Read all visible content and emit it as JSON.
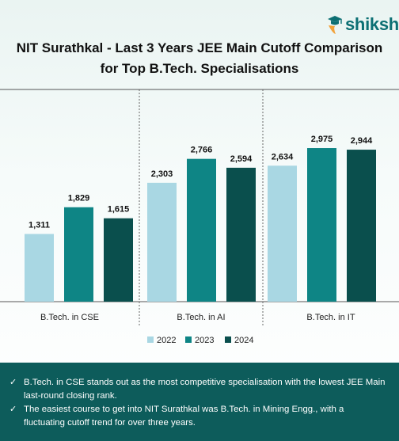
{
  "brand": {
    "logo_text": "shiksha",
    "logo_color": "#0c6f73"
  },
  "title_lines": [
    "NIT Surathkal - Last 3 Years JEE Main Cutoff Comparison",
    "for Top B.Tech. Specialisations"
  ],
  "chart_data": {
    "type": "bar",
    "title": "NIT Surathkal - Last 3 Years JEE Main Cutoff Comparison for Top B.Tech. Specialisations",
    "categories": [
      "B.Tech. in CSE",
      "B.Tech. in AI",
      "B.Tech. in IT"
    ],
    "series": [
      {
        "name": "2022",
        "values": [
          1311,
          2303,
          2634
        ],
        "labels": [
          "1,311",
          "2,303",
          "2,634"
        ],
        "color": "#a9d7e3"
      },
      {
        "name": "2023",
        "values": [
          1829,
          2766,
          2975
        ],
        "labels": [
          "1,829",
          "2,766",
          "2,975"
        ],
        "color": "#0e8585"
      },
      {
        "name": "2024",
        "values": [
          1615,
          2594,
          2944
        ],
        "labels": [
          "1,615",
          "2,594",
          "2,944"
        ],
        "color": "#0a4f4d"
      }
    ],
    "ylim": [
      0,
      3500
    ],
    "legend": "bottom",
    "grid": false
  },
  "footer": {
    "tick_icon": "check-mark-icon",
    "bullets": [
      "B.Tech. in CSE stands out as the most competitive specialisation with the lowest JEE Main last-round closing rank.",
      "The easiest course to get into NIT Surathkal was B.Tech. in Mining Engg., with a fluctuating cutoff trend for over three years."
    ],
    "background": "#0d5c5b"
  }
}
